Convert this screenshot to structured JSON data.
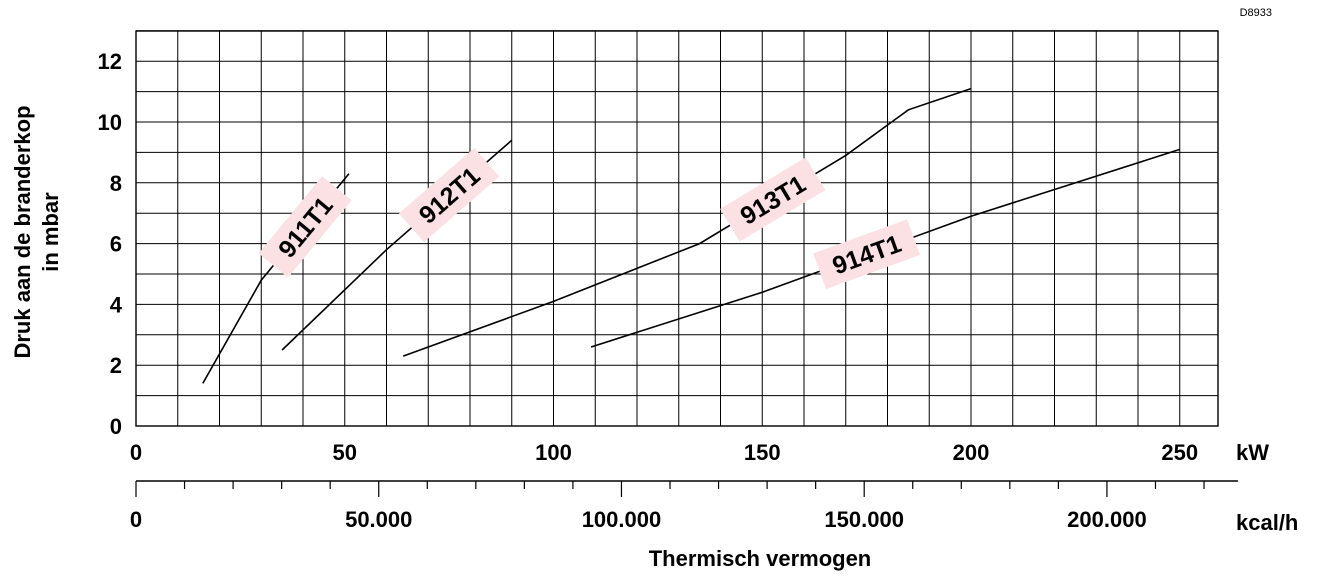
{
  "chart_data": {
    "type": "line",
    "code": "D8933",
    "ylabel_line1": "Druk aan de branderkop",
    "ylabel_line2": "in mbar",
    "xlabel": "Thermisch vermogen",
    "x_unit": "kW",
    "x2_unit": "kcal/h",
    "xlim": [
      0,
      260
    ],
    "ylim": [
      0,
      13
    ],
    "x_ticks": [
      "0",
      "50",
      "100",
      "150",
      "200",
      "250"
    ],
    "y_ticks": [
      "0",
      "2",
      "4",
      "6",
      "8",
      "10",
      "12"
    ],
    "x2_ticks": [
      "0",
      "50.000",
      "100.000",
      "150.000",
      "200.000"
    ],
    "grid": true,
    "series": [
      {
        "name": "911T1",
        "points": [
          [
            16,
            1.4
          ],
          [
            30,
            4.8
          ],
          [
            51,
            8.3
          ]
        ]
      },
      {
        "name": "912T1",
        "points": [
          [
            35,
            2.5
          ],
          [
            60,
            5.8
          ],
          [
            90,
            9.4
          ]
        ]
      },
      {
        "name": "913T1",
        "points": [
          [
            64,
            2.3
          ],
          [
            100,
            4.1
          ],
          [
            135,
            6.0
          ],
          [
            170,
            8.9
          ],
          [
            185,
            10.4
          ],
          [
            200,
            11.1
          ]
        ]
      },
      {
        "name": "914T1",
        "points": [
          [
            109,
            2.6
          ],
          [
            150,
            4.4
          ],
          [
            200,
            6.9
          ],
          [
            250,
            9.1
          ]
        ]
      }
    ]
  }
}
